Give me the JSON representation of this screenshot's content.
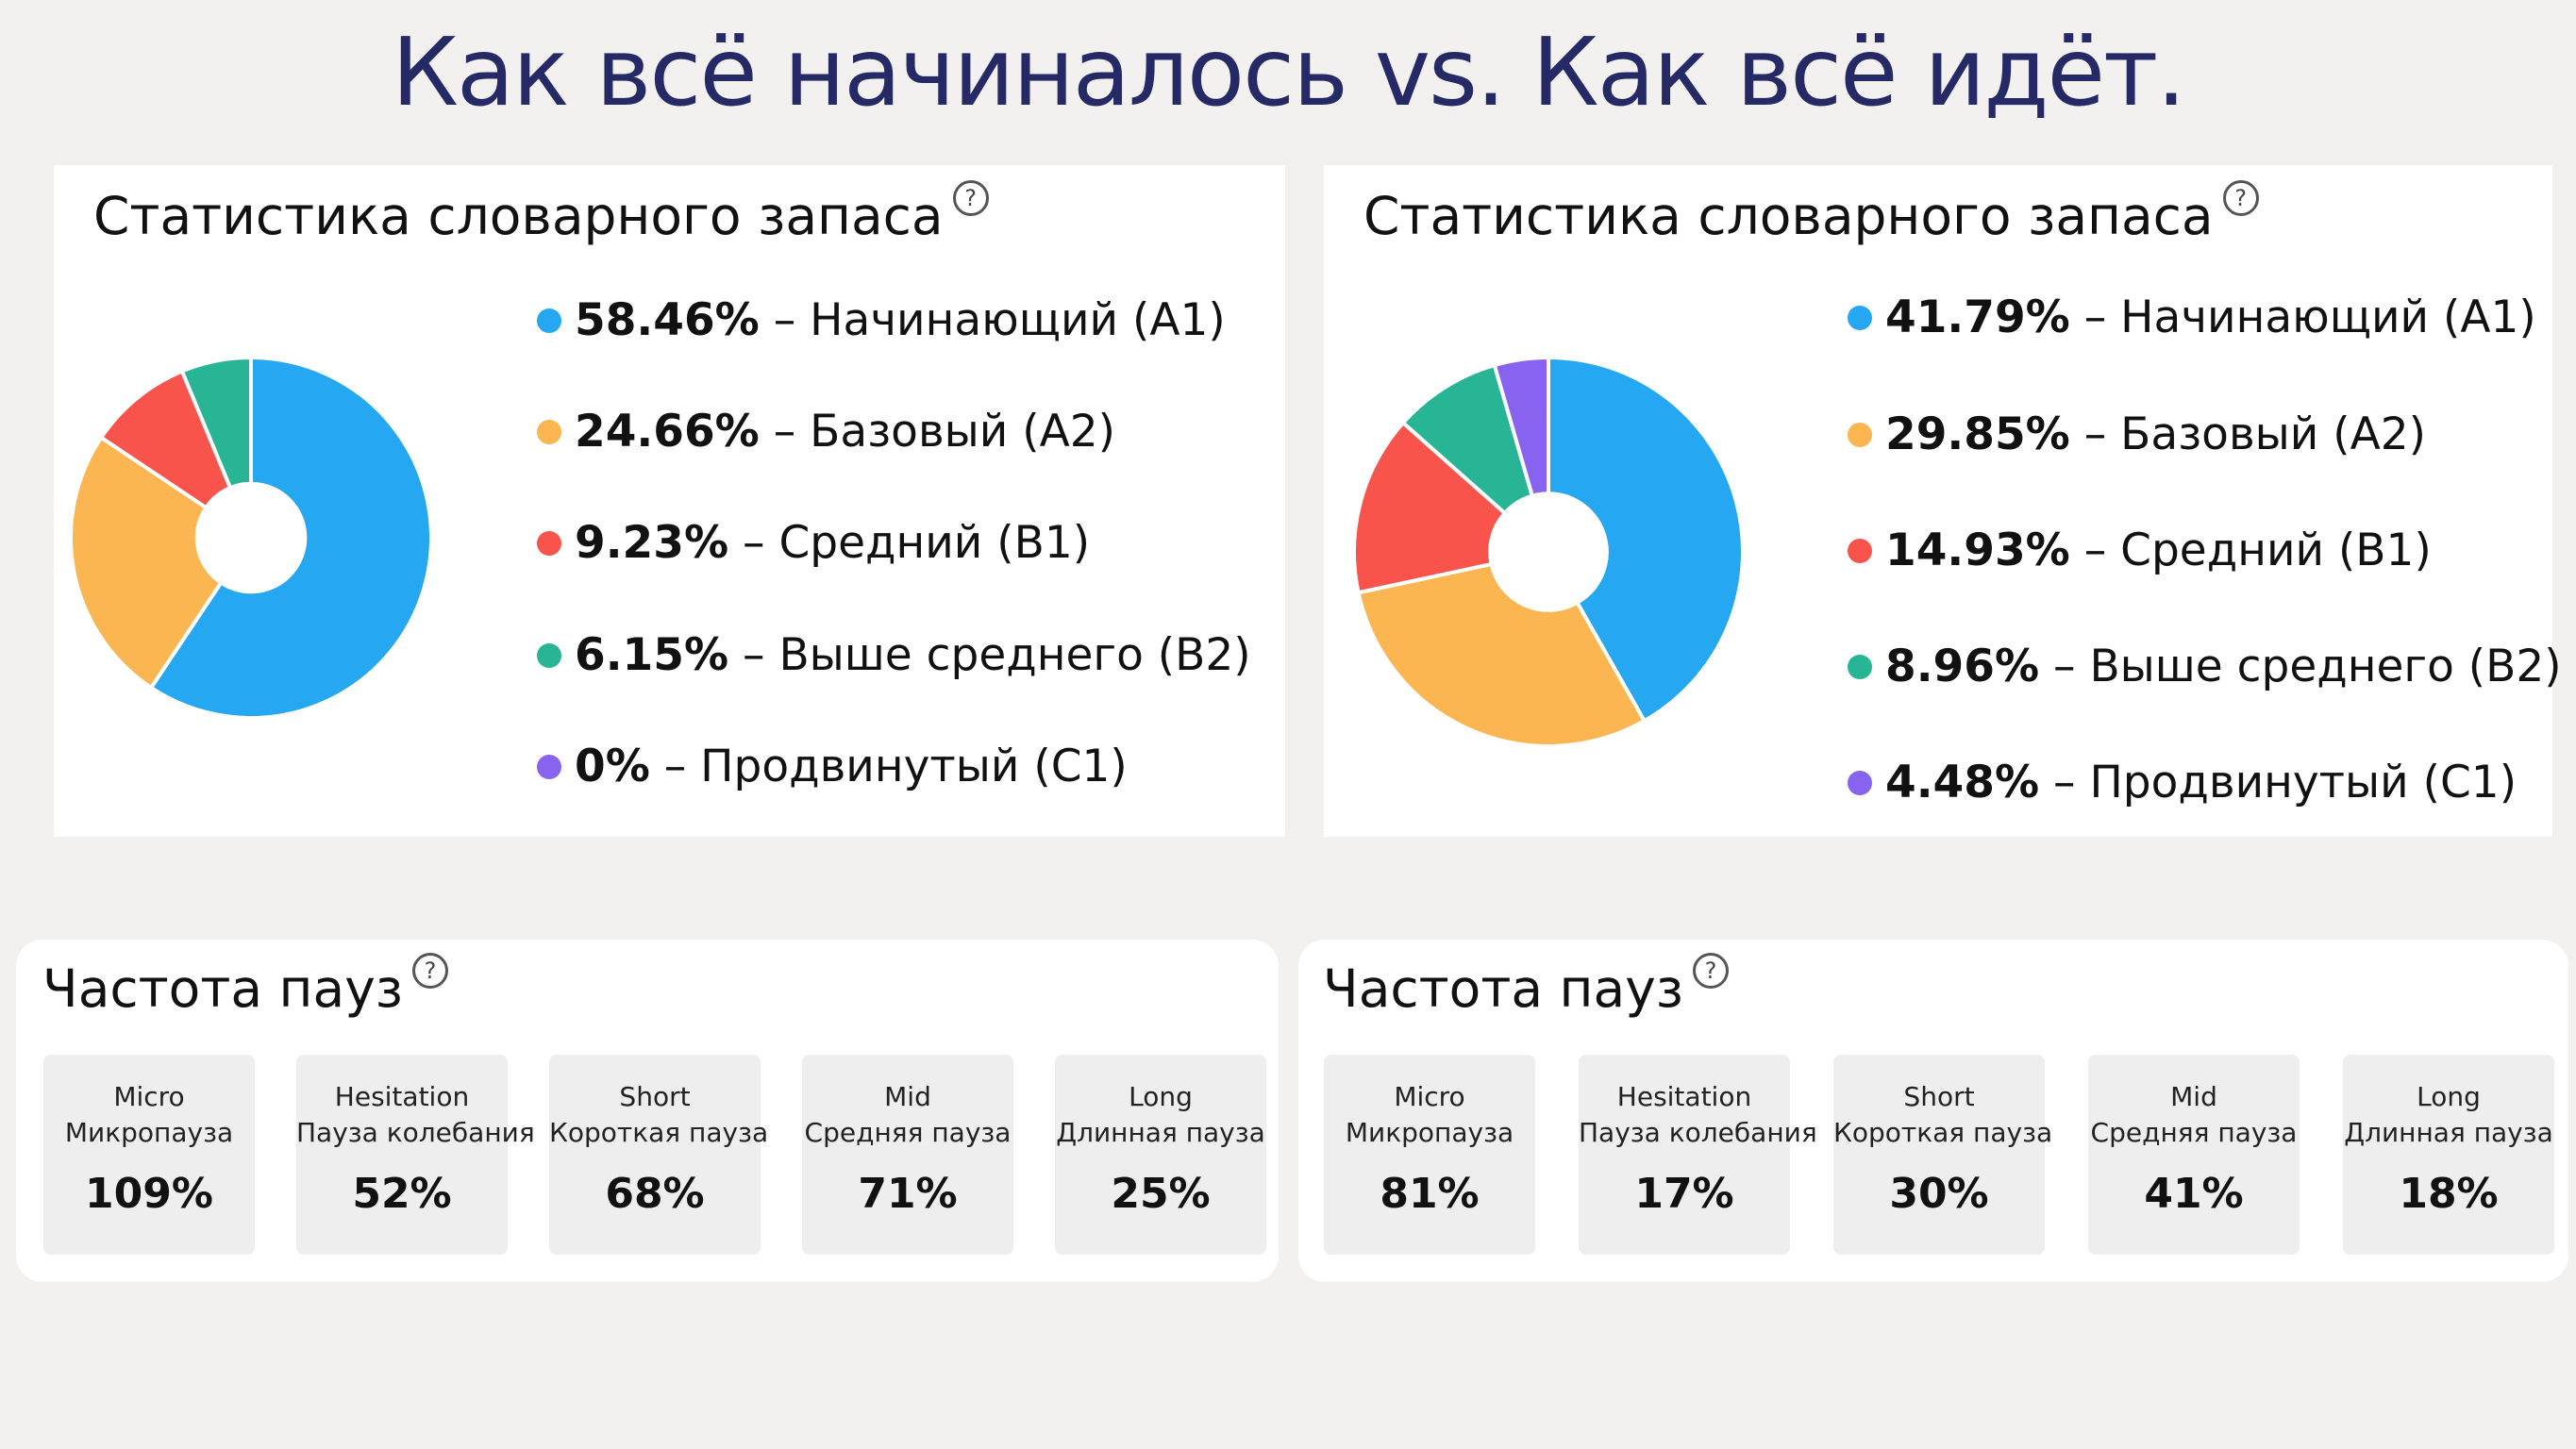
{
  "page_title": "Как всё начиналось vs. Как всё идёт.",
  "vocab_left": {
    "title": "Статистика словарного запаса",
    "help_icon": "question-circle-icon",
    "items": [
      {
        "pct": "58.46%",
        "label": " – Начинающий (A1)",
        "value": 58.46,
        "color": "#25a7f2"
      },
      {
        "pct": "24.66%",
        "label": " – Базовый (A2)",
        "value": 24.66,
        "color": "#fbb651"
      },
      {
        "pct": "9.23%",
        "label": " – Средний (B1)",
        "value": 9.23,
        "color": "#f8544c"
      },
      {
        "pct": "6.15%",
        "label": " – Выше среднего (B2)",
        "value": 6.15,
        "color": "#27b596"
      },
      {
        "pct": "0%",
        "label": " – Продвинутый (C1)",
        "value": 0,
        "color": "#8863f0"
      }
    ]
  },
  "vocab_right": {
    "title": "Статистика словарного запаса",
    "help_icon": "question-circle-icon",
    "items": [
      {
        "pct": "41.79%",
        "label": " – Начинающий (A1)",
        "value": 41.79,
        "color": "#25a7f2"
      },
      {
        "pct": "29.85%",
        "label": " – Базовый (A2)",
        "value": 29.85,
        "color": "#fbb651"
      },
      {
        "pct": "14.93%",
        "label": " – Средний (B1)",
        "value": 14.93,
        "color": "#f8544c"
      },
      {
        "pct": "8.96%",
        "label": " – Выше среднего (B2)",
        "value": 8.96,
        "color": "#27b596"
      },
      {
        "pct": "4.48%",
        "label": " – Продвинутый (C1)",
        "value": 4.48,
        "color": "#8863f0"
      }
    ]
  },
  "pause_left": {
    "title": "Частота пауз",
    "help_icon": "question-circle-icon",
    "items": [
      {
        "en": "Micro",
        "ru": "Микропауза",
        "value": "109%"
      },
      {
        "en": "Hesitation",
        "ru": "Пауза колебания",
        "value": "52%"
      },
      {
        "en": "Short",
        "ru": "Короткая пауза",
        "value": "68%"
      },
      {
        "en": "Mid",
        "ru": "Средняя пауза",
        "value": "71%"
      },
      {
        "en": "Long",
        "ru": "Длинная пауза",
        "value": "25%"
      }
    ]
  },
  "pause_right": {
    "title": "Частота пауз",
    "help_icon": "question-circle-icon",
    "items": [
      {
        "en": "Micro",
        "ru": "Микропауза",
        "value": "81%"
      },
      {
        "en": "Hesitation",
        "ru": "Пауза колебания",
        "value": "17%"
      },
      {
        "en": "Short",
        "ru": "Короткая пауза",
        "value": "30%"
      },
      {
        "en": "Mid",
        "ru": "Средняя пауза",
        "value": "41%"
      },
      {
        "en": "Long",
        "ru": "Длинная пауза",
        "value": "18%"
      }
    ]
  },
  "chart_data": [
    {
      "type": "pie",
      "title": "Статистика словарного запаса",
      "categories": [
        "Начинающий (A1)",
        "Базовый (A2)",
        "Средний (B1)",
        "Выше среднего (B2)",
        "Продвинутый (C1)"
      ],
      "values": [
        58.46,
        24.66,
        9.23,
        6.15,
        0
      ],
      "colors": [
        "#25a7f2",
        "#fbb651",
        "#f8544c",
        "#27b596",
        "#8863f0"
      ],
      "legend": "right"
    },
    {
      "type": "pie",
      "title": "Статистика словарного запаса",
      "categories": [
        "Начинающий (A1)",
        "Базовый (A2)",
        "Средний (B1)",
        "Выше среднего (B2)",
        "Продвинутый (C1)"
      ],
      "values": [
        41.79,
        29.85,
        14.93,
        8.96,
        4.48
      ],
      "colors": [
        "#25a7f2",
        "#fbb651",
        "#f8544c",
        "#27b596",
        "#8863f0"
      ],
      "legend": "right"
    }
  ]
}
